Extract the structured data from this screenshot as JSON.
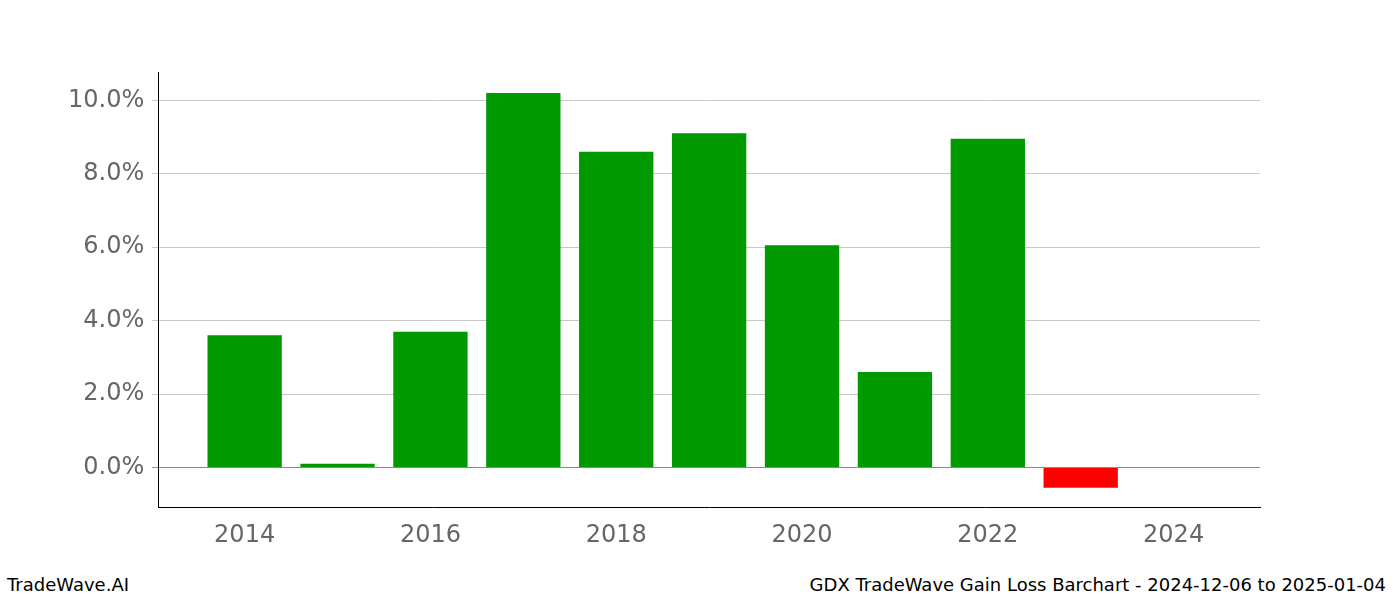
{
  "chart_data": {
    "type": "bar",
    "x": [
      2014,
      2015,
      2016,
      2017,
      2018,
      2019,
      2020,
      2021,
      2022,
      2023
    ],
    "values": [
      3.6,
      0.1,
      3.7,
      10.2,
      8.6,
      9.1,
      6.05,
      2.6,
      8.95,
      -0.55
    ],
    "colors": [
      "#009900",
      "#009900",
      "#009900",
      "#009900",
      "#009900",
      "#009900",
      "#009900",
      "#009900",
      "#009900",
      "#ff0000"
    ],
    "xlim": [
      2013.07,
      2024.93
    ],
    "xticks": [
      2014,
      2016,
      2018,
      2020,
      2022,
      2024
    ],
    "ylim": [
      -1.08,
      10.77
    ],
    "yticks": [
      {
        "value": 0,
        "label": "0.0%"
      },
      {
        "value": 2,
        "label": "2.0%"
      },
      {
        "value": 4,
        "label": "4.0%"
      },
      {
        "value": 6,
        "label": "6.0%"
      },
      {
        "value": 8,
        "label": "8.0%"
      },
      {
        "value": 10,
        "label": "10.0%"
      }
    ],
    "grid": true,
    "footer_left": "TradeWave.AI",
    "footer_right": "GDX TradeWave Gain Loss Barchart - 2024-12-06 to 2025-01-04"
  }
}
